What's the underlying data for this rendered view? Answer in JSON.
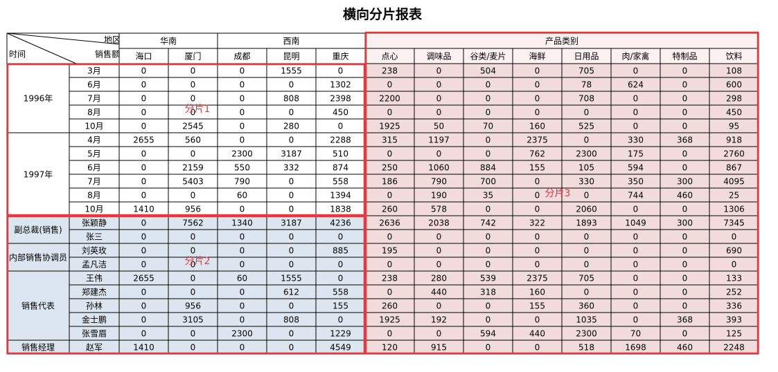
{
  "title": "横向分片报表",
  "header": {
    "corner": {
      "top": "地区",
      "middle": "销售额",
      "bottom": "时间"
    },
    "groups": [
      {
        "label": "华南",
        "columns": [
          "海口",
          "厦门"
        ]
      },
      {
        "label": "西南",
        "columns": [
          "成都",
          "昆明",
          "重庆"
        ]
      },
      {
        "label": "产品类别",
        "columns": [
          "点心",
          "调味品",
          "谷类/麦片",
          "海鲜",
          "日用品",
          "肉/家禽",
          "特制品",
          "饮料"
        ]
      }
    ]
  },
  "row_sections": [
    {
      "slice": "分片1",
      "groups": [
        {
          "label": "1996年",
          "rows": [
            {
              "label": "3月",
              "values": [
                0,
                0,
                0,
                1555,
                0,
                238,
                0,
                504,
                0,
                705,
                0,
                0,
                108
              ]
            },
            {
              "label": "6月",
              "values": [
                0,
                0,
                0,
                0,
                1302,
                0,
                0,
                0,
                0,
                78,
                624,
                0,
                600
              ]
            },
            {
              "label": "7月",
              "values": [
                0,
                0,
                0,
                808,
                2398,
                2200,
                0,
                0,
                0,
                708,
                0,
                0,
                298
              ]
            },
            {
              "label": "8月",
              "values": [
                0,
                0,
                0,
                0,
                450,
                0,
                0,
                0,
                0,
                0,
                0,
                0,
                450
              ]
            },
            {
              "label": "10月",
              "values": [
                0,
                2545,
                0,
                280,
                0,
                1925,
                50,
                70,
                160,
                525,
                0,
                0,
                95
              ]
            }
          ]
        },
        {
          "label": "1997年",
          "rows": [
            {
              "label": "4月",
              "values": [
                2655,
                560,
                0,
                0,
                2288,
                315,
                1197,
                0,
                2375,
                0,
                330,
                368,
                918
              ]
            },
            {
              "label": "5月",
              "values": [
                0,
                0,
                2300,
                3187,
                510,
                0,
                0,
                0,
                762,
                2300,
                175,
                0,
                2760
              ]
            },
            {
              "label": "6月",
              "values": [
                0,
                2159,
                550,
                332,
                874,
                250,
                1060,
                884,
                155,
                105,
                594,
                0,
                867
              ]
            },
            {
              "label": "7月",
              "values": [
                0,
                5403,
                790,
                0,
                558,
                186,
                790,
                700,
                0,
                330,
                350,
                300,
                4095
              ]
            },
            {
              "label": "8月",
              "values": [
                0,
                0,
                60,
                0,
                1394,
                0,
                190,
                35,
                0,
                0,
                744,
                460,
                25
              ]
            },
            {
              "label": "10月",
              "values": [
                1410,
                956,
                0,
                0,
                1838,
                260,
                578,
                0,
                0,
                2060,
                0,
                0,
                1306
              ]
            }
          ]
        }
      ]
    },
    {
      "slice": "分片2",
      "groups": [
        {
          "label": "副总裁(销售)",
          "rows": [
            {
              "label": "张颖静",
              "values": [
                0,
                7562,
                1340,
                3187,
                4236,
                2636,
                2038,
                742,
                322,
                1893,
                1049,
                300,
                7345
              ]
            },
            {
              "label": "张三",
              "values": [
                0,
                0,
                0,
                0,
                0,
                0,
                0,
                0,
                0,
                0,
                0,
                0,
                0
              ]
            }
          ]
        },
        {
          "label": "内部销售协调员",
          "rows": [
            {
              "label": "刘英玫",
              "values": [
                0,
                0,
                0,
                0,
                885,
                195,
                0,
                0,
                0,
                0,
                0,
                0,
                690
              ]
            },
            {
              "label": "孟凡洁",
              "values": [
                0,
                0,
                0,
                0,
                0,
                0,
                0,
                0,
                0,
                0,
                0,
                0,
                0
              ]
            }
          ]
        },
        {
          "label": "销售代表",
          "rows": [
            {
              "label": "王伟",
              "values": [
                2655,
                0,
                60,
                1555,
                0,
                238,
                280,
                539,
                2375,
                705,
                0,
                0,
                133
              ]
            },
            {
              "label": "郑建杰",
              "values": [
                0,
                0,
                0,
                612,
                558,
                0,
                440,
                318,
                160,
                0,
                0,
                0,
                252
              ]
            },
            {
              "label": "孙林",
              "values": [
                0,
                956,
                0,
                0,
                155,
                260,
                0,
                0,
                155,
                360,
                0,
                0,
                336
              ]
            },
            {
              "label": "金士鹏",
              "values": [
                0,
                3105,
                0,
                808,
                0,
                1925,
                192,
                0,
                0,
                1035,
                0,
                368,
                393
              ]
            },
            {
              "label": "张雪眉",
              "values": [
                0,
                0,
                2300,
                0,
                1229,
                0,
                0,
                594,
                440,
                2300,
                70,
                0,
                125
              ]
            }
          ]
        },
        {
          "label": "销售经理",
          "rows": [
            {
              "label": "赵军",
              "values": [
                1410,
                0,
                0,
                0,
                4549,
                120,
                915,
                0,
                0,
                518,
                1698,
                460,
                2248
              ]
            }
          ]
        }
      ]
    }
  ],
  "right_slice": "分片3"
}
